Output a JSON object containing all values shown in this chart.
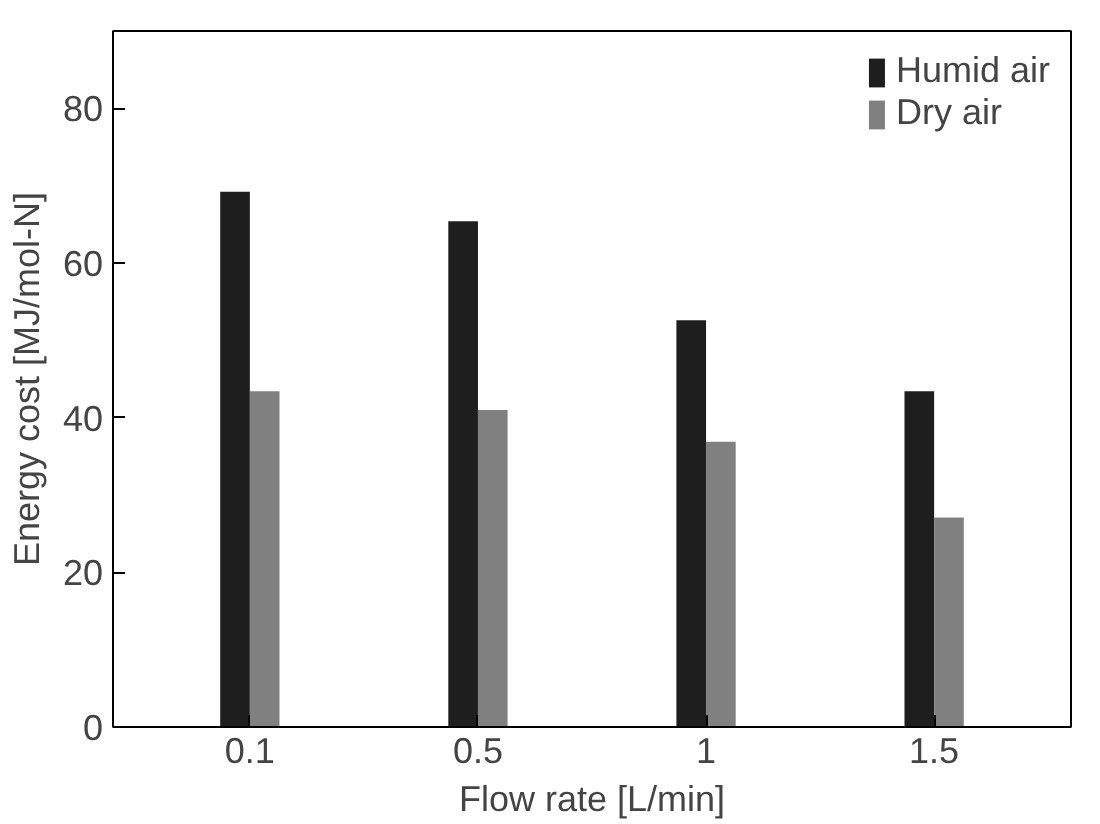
{
  "chart_data": {
    "type": "bar",
    "xlabel": "Flow rate [L/min]",
    "ylabel": "Energy cost [MJ/mol-N]",
    "categories": [
      "0.1",
      "0.5",
      "1",
      "1.5"
    ],
    "series": [
      {
        "name": "Humid air",
        "color": "#1e1e1e",
        "values": [
          69.2,
          65.4,
          52.6,
          43.4
        ]
      },
      {
        "name": "Dry air",
        "color": "#808080",
        "values": [
          43.4,
          41.0,
          36.9,
          27.1
        ]
      }
    ],
    "ylim": [
      0,
      90
    ],
    "yticks": [
      0,
      20,
      40,
      60,
      80
    ],
    "grid": false,
    "legend": "top right"
  }
}
